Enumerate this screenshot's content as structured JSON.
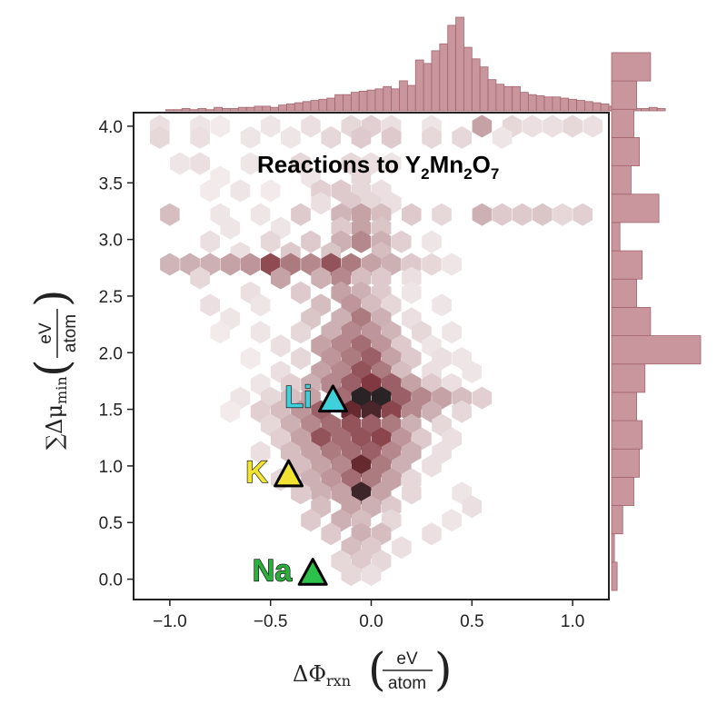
{
  "chart_data": {
    "type": "hexbin",
    "title": "Reactions to Y₂Mn₂O₇",
    "title_parts": {
      "a": "Reactions to Y",
      "s1": "2",
      "b": "Mn",
      "s2": "2",
      "c": "O",
      "s3": "7"
    },
    "xlabel": {
      "sym": "ΔΦ",
      "sub": "rxn",
      "num": "eV",
      "den": "atom"
    },
    "ylabel": {
      "sym": "∑Δμ",
      "sub": "min",
      "num": "eV",
      "den": "atom"
    },
    "xlim": [
      -1.18,
      1.18
    ],
    "ylim": [
      -0.18,
      4.12
    ],
    "xticks": [
      -1.0,
      -0.5,
      0.0,
      0.5,
      1.0
    ],
    "xtick_labels": [
      "−1.0",
      "−0.5",
      "0.0",
      "0.5",
      "1.0"
    ],
    "yticks": [
      0.0,
      0.5,
      1.0,
      1.5,
      2.0,
      2.5,
      3.0,
      3.5,
      4.0
    ],
    "ytick_labels": [
      "0.0",
      "0.5",
      "1.0",
      "1.5",
      "2.0",
      "2.5",
      "3.0",
      "3.5",
      "4.0"
    ],
    "colors": {
      "base": "#7a2b34",
      "dark": "#2a2325",
      "bar": "#c9969d",
      "bar_edge": "#a4646d"
    },
    "hexbins": [
      [
        -1.05,
        4.0,
        0.12
      ],
      [
        -0.85,
        4.0,
        0.1
      ],
      [
        -0.75,
        4.0,
        0.08
      ],
      [
        -0.5,
        4.0,
        0.1
      ],
      [
        -0.3,
        4.0,
        0.12
      ],
      [
        -0.1,
        4.0,
        0.15
      ],
      [
        0.0,
        4.0,
        0.18
      ],
      [
        0.1,
        4.0,
        0.12
      ],
      [
        0.3,
        4.0,
        0.1
      ],
      [
        0.55,
        4.0,
        0.35
      ],
      [
        0.7,
        4.0,
        0.15
      ],
      [
        0.8,
        4.0,
        0.12
      ],
      [
        0.9,
        4.0,
        0.12
      ],
      [
        1.0,
        4.0,
        0.15
      ],
      [
        1.1,
        4.0,
        0.12
      ],
      [
        -1.05,
        3.9,
        0.15
      ],
      [
        -0.85,
        3.9,
        0.12
      ],
      [
        -0.6,
        3.9,
        0.1
      ],
      [
        -0.4,
        3.9,
        0.1
      ],
      [
        -0.2,
        3.9,
        0.15
      ],
      [
        -0.05,
        3.9,
        0.2
      ],
      [
        0.1,
        3.9,
        0.2
      ],
      [
        0.3,
        3.9,
        0.15
      ],
      [
        0.45,
        3.9,
        0.15
      ],
      [
        0.65,
        3.9,
        0.1
      ],
      [
        -0.95,
        3.67,
        0.1
      ],
      [
        -0.85,
        3.67,
        0.12
      ],
      [
        -0.6,
        3.67,
        0.1
      ],
      [
        -0.35,
        3.67,
        0.15
      ],
      [
        -0.1,
        3.67,
        0.15
      ],
      [
        0.0,
        3.67,
        0.12
      ],
      [
        0.1,
        3.67,
        0.1
      ],
      [
        -0.75,
        3.55,
        0.08
      ],
      [
        -0.3,
        3.55,
        0.1
      ],
      [
        -0.05,
        3.55,
        0.15
      ],
      [
        -0.8,
        3.43,
        0.08
      ],
      [
        -0.65,
        3.43,
        0.1
      ],
      [
        -0.5,
        3.43,
        0.08
      ],
      [
        -0.25,
        3.43,
        0.18
      ],
      [
        -0.15,
        3.43,
        0.2
      ],
      [
        -0.05,
        3.43,
        0.15
      ],
      [
        0.05,
        3.43,
        0.12
      ],
      [
        -0.25,
        3.32,
        0.12
      ],
      [
        -0.1,
        3.32,
        0.2
      ],
      [
        0.0,
        3.32,
        0.15
      ],
      [
        0.1,
        3.32,
        0.12
      ],
      [
        -1.0,
        3.22,
        0.25
      ],
      [
        -0.75,
        3.22,
        0.1
      ],
      [
        -0.55,
        3.22,
        0.1
      ],
      [
        -0.35,
        3.22,
        0.2
      ],
      [
        -0.15,
        3.22,
        0.28
      ],
      [
        -0.05,
        3.22,
        0.35
      ],
      [
        0.05,
        3.22,
        0.25
      ],
      [
        0.2,
        3.22,
        0.2
      ],
      [
        0.35,
        3.22,
        0.15
      ],
      [
        0.55,
        3.22,
        0.3
      ],
      [
        0.65,
        3.22,
        0.2
      ],
      [
        0.75,
        3.22,
        0.2
      ],
      [
        0.85,
        3.22,
        0.22
      ],
      [
        0.95,
        3.22,
        0.15
      ],
      [
        1.05,
        3.22,
        0.18
      ],
      [
        -0.7,
        3.1,
        0.1
      ],
      [
        -0.45,
        3.1,
        0.1
      ],
      [
        -0.15,
        3.1,
        0.2
      ],
      [
        -0.05,
        3.1,
        0.35
      ],
      [
        0.05,
        3.1,
        0.22
      ],
      [
        -0.8,
        2.98,
        0.12
      ],
      [
        -0.5,
        2.98,
        0.15
      ],
      [
        -0.3,
        2.98,
        0.2
      ],
      [
        -0.15,
        2.98,
        0.3
      ],
      [
        -0.05,
        2.98,
        0.45
      ],
      [
        0.05,
        2.98,
        0.3
      ],
      [
        0.15,
        2.98,
        0.18
      ],
      [
        0.3,
        2.98,
        0.1
      ],
      [
        -0.65,
        2.88,
        0.12
      ],
      [
        -0.4,
        2.88,
        0.2
      ],
      [
        -0.2,
        2.88,
        0.22
      ],
      [
        0.05,
        2.88,
        0.25
      ],
      [
        -1.0,
        2.78,
        0.28
      ],
      [
        -0.9,
        2.78,
        0.3
      ],
      [
        -0.8,
        2.78,
        0.3
      ],
      [
        -0.7,
        2.78,
        0.35
      ],
      [
        -0.6,
        2.78,
        0.4
      ],
      [
        -0.5,
        2.78,
        0.68
      ],
      [
        -0.4,
        2.78,
        0.5
      ],
      [
        -0.3,
        2.78,
        0.45
      ],
      [
        -0.2,
        2.78,
        0.65
      ],
      [
        -0.1,
        2.78,
        0.5
      ],
      [
        0.0,
        2.78,
        0.35
      ],
      [
        0.1,
        2.78,
        0.3
      ],
      [
        0.2,
        2.78,
        0.2
      ],
      [
        0.3,
        2.78,
        0.15
      ],
      [
        0.4,
        2.78,
        0.1
      ],
      [
        -0.85,
        2.66,
        0.15
      ],
      [
        -0.45,
        2.66,
        0.35
      ],
      [
        -0.25,
        2.66,
        0.3
      ],
      [
        -0.15,
        2.66,
        0.45
      ],
      [
        -0.05,
        2.66,
        0.25
      ],
      [
        0.05,
        2.66,
        0.2
      ],
      [
        0.2,
        2.66,
        0.12
      ],
      [
        -0.6,
        2.53,
        0.12
      ],
      [
        -0.35,
        2.53,
        0.2
      ],
      [
        -0.15,
        2.53,
        0.35
      ],
      [
        -0.05,
        2.53,
        0.3
      ],
      [
        0.05,
        2.53,
        0.2
      ],
      [
        0.2,
        2.53,
        0.1
      ],
      [
        -0.8,
        2.42,
        0.12
      ],
      [
        -0.55,
        2.42,
        0.1
      ],
      [
        -0.25,
        2.42,
        0.25
      ],
      [
        -0.1,
        2.42,
        0.4
      ],
      [
        0.0,
        2.42,
        0.25
      ],
      [
        0.1,
        2.42,
        0.15
      ],
      [
        0.35,
        2.42,
        0.1
      ],
      [
        -0.7,
        2.3,
        0.1
      ],
      [
        -0.3,
        2.3,
        0.22
      ],
      [
        -0.15,
        2.3,
        0.3
      ],
      [
        -0.05,
        2.3,
        0.5
      ],
      [
        0.05,
        2.3,
        0.3
      ],
      [
        0.2,
        2.3,
        0.12
      ],
      [
        -0.75,
        2.18,
        0.08
      ],
      [
        -0.55,
        2.18,
        0.1
      ],
      [
        -0.35,
        2.18,
        0.15
      ],
      [
        -0.2,
        2.18,
        0.3
      ],
      [
        -0.1,
        2.18,
        0.45
      ],
      [
        0.0,
        2.18,
        0.4
      ],
      [
        0.1,
        2.18,
        0.28
      ],
      [
        0.25,
        2.18,
        0.15
      ],
      [
        0.4,
        2.18,
        0.1
      ],
      [
        -0.45,
        2.06,
        0.12
      ],
      [
        -0.25,
        2.06,
        0.35
      ],
      [
        -0.15,
        2.06,
        0.45
      ],
      [
        -0.05,
        2.06,
        0.55
      ],
      [
        0.05,
        2.06,
        0.4
      ],
      [
        0.15,
        2.06,
        0.2
      ],
      [
        0.3,
        2.06,
        0.1
      ],
      [
        -0.6,
        1.95,
        0.08
      ],
      [
        -0.35,
        1.95,
        0.15
      ],
      [
        -0.2,
        1.95,
        0.4
      ],
      [
        -0.1,
        1.95,
        0.5
      ],
      [
        0.0,
        1.95,
        0.6
      ],
      [
        0.1,
        1.95,
        0.35
      ],
      [
        0.2,
        1.95,
        0.2
      ],
      [
        0.35,
        1.95,
        0.12
      ],
      [
        0.45,
        1.95,
        0.1
      ],
      [
        -0.45,
        1.83,
        0.12
      ],
      [
        -0.25,
        1.83,
        0.35
      ],
      [
        -0.15,
        1.83,
        0.45
      ],
      [
        -0.05,
        1.83,
        0.65
      ],
      [
        0.05,
        1.83,
        0.5
      ],
      [
        0.15,
        1.83,
        0.25
      ],
      [
        0.3,
        1.83,
        0.12
      ],
      [
        0.5,
        1.83,
        0.1
      ],
      [
        -0.55,
        1.72,
        0.1
      ],
      [
        -0.4,
        1.72,
        0.18
      ],
      [
        -0.3,
        1.72,
        0.3
      ],
      [
        -0.2,
        1.72,
        0.45
      ],
      [
        -0.1,
        1.72,
        0.6
      ],
      [
        0.0,
        1.72,
        0.75
      ],
      [
        0.1,
        1.72,
        0.6
      ],
      [
        0.2,
        1.72,
        0.35
      ],
      [
        0.3,
        1.72,
        0.2
      ],
      [
        0.4,
        1.72,
        0.12
      ],
      [
        -0.65,
        1.6,
        0.1
      ],
      [
        -0.5,
        1.6,
        0.15
      ],
      [
        -0.4,
        1.6,
        0.25
      ],
      [
        -0.3,
        1.6,
        0.35
      ],
      [
        -0.15,
        1.6,
        0.55
      ],
      [
        -0.05,
        1.6,
        1.0
      ],
      [
        0.05,
        1.6,
        1.0
      ],
      [
        0.15,
        1.6,
        0.6
      ],
      [
        0.25,
        1.6,
        0.45
      ],
      [
        0.35,
        1.6,
        0.35
      ],
      [
        0.45,
        1.6,
        0.25
      ],
      [
        0.55,
        1.6,
        0.18
      ],
      [
        -0.7,
        1.48,
        0.08
      ],
      [
        -0.55,
        1.48,
        0.18
      ],
      [
        -0.45,
        1.48,
        0.25
      ],
      [
        -0.35,
        1.48,
        0.4
      ],
      [
        -0.25,
        1.48,
        0.6
      ],
      [
        -0.1,
        1.48,
        0.85
      ],
      [
        0.0,
        1.48,
        0.92
      ],
      [
        0.1,
        1.48,
        0.7
      ],
      [
        0.2,
        1.48,
        0.45
      ],
      [
        0.3,
        1.48,
        0.3
      ],
      [
        0.45,
        1.48,
        0.15
      ],
      [
        -0.5,
        1.36,
        0.15
      ],
      [
        -0.4,
        1.36,
        0.3
      ],
      [
        -0.3,
        1.36,
        0.45
      ],
      [
        -0.2,
        1.36,
        0.55
      ],
      [
        -0.1,
        1.36,
        0.65
      ],
      [
        0.0,
        1.36,
        0.6
      ],
      [
        0.1,
        1.36,
        0.5
      ],
      [
        0.2,
        1.36,
        0.3
      ],
      [
        0.35,
        1.36,
        0.15
      ],
      [
        -0.45,
        1.24,
        0.18
      ],
      [
        -0.35,
        1.24,
        0.35
      ],
      [
        -0.25,
        1.24,
        0.65
      ],
      [
        -0.15,
        1.24,
        0.55
      ],
      [
        -0.05,
        1.24,
        0.65
      ],
      [
        0.05,
        1.24,
        0.7
      ],
      [
        0.15,
        1.24,
        0.4
      ],
      [
        0.25,
        1.24,
        0.2
      ],
      [
        0.4,
        1.24,
        0.12
      ],
      [
        -0.55,
        1.12,
        0.12
      ],
      [
        -0.4,
        1.12,
        0.25
      ],
      [
        -0.3,
        1.12,
        0.35
      ],
      [
        -0.2,
        1.12,
        0.5
      ],
      [
        -0.1,
        1.12,
        0.55
      ],
      [
        0.0,
        1.12,
        0.6
      ],
      [
        0.1,
        1.12,
        0.45
      ],
      [
        0.2,
        1.12,
        0.3
      ],
      [
        0.35,
        1.12,
        0.12
      ],
      [
        -0.35,
        1.0,
        0.25
      ],
      [
        -0.25,
        1.0,
        0.35
      ],
      [
        -0.15,
        1.0,
        0.45
      ],
      [
        -0.05,
        1.0,
        0.85
      ],
      [
        0.05,
        1.0,
        0.5
      ],
      [
        0.15,
        1.0,
        0.3
      ],
      [
        0.3,
        1.0,
        0.12
      ],
      [
        -0.45,
        0.88,
        0.15
      ],
      [
        -0.3,
        0.88,
        0.3
      ],
      [
        -0.2,
        0.88,
        0.4
      ],
      [
        -0.1,
        0.88,
        0.55
      ],
      [
        0.0,
        0.88,
        0.5
      ],
      [
        0.1,
        0.88,
        0.35
      ],
      [
        0.2,
        0.88,
        0.15
      ],
      [
        -0.35,
        0.76,
        0.2
      ],
      [
        -0.25,
        0.76,
        0.3
      ],
      [
        -0.15,
        0.76,
        0.35
      ],
      [
        -0.05,
        0.76,
        0.95
      ],
      [
        0.05,
        0.76,
        0.35
      ],
      [
        0.2,
        0.76,
        0.15
      ],
      [
        0.45,
        0.76,
        0.1
      ],
      [
        -0.25,
        0.64,
        0.25
      ],
      [
        -0.1,
        0.64,
        0.35
      ],
      [
        0.0,
        0.64,
        0.3
      ],
      [
        0.1,
        0.64,
        0.2
      ],
      [
        0.5,
        0.64,
        0.12
      ],
      [
        -0.3,
        0.52,
        0.2
      ],
      [
        -0.15,
        0.52,
        0.3
      ],
      [
        -0.05,
        0.52,
        0.25
      ],
      [
        0.1,
        0.52,
        0.15
      ],
      [
        0.4,
        0.52,
        0.1
      ],
      [
        -0.2,
        0.4,
        0.2
      ],
      [
        -0.05,
        0.4,
        0.3
      ],
      [
        0.05,
        0.4,
        0.25
      ],
      [
        0.3,
        0.4,
        0.12
      ],
      [
        -0.1,
        0.28,
        0.25
      ],
      [
        0.0,
        0.28,
        0.2
      ],
      [
        0.15,
        0.28,
        0.12
      ],
      [
        -0.15,
        0.16,
        0.15
      ],
      [
        -0.05,
        0.16,
        0.2
      ],
      [
        0.05,
        0.16,
        0.15
      ],
      [
        -0.1,
        0.04,
        0.15
      ],
      [
        0.0,
        0.04,
        0.12
      ]
    ],
    "markers": [
      {
        "label": "Li",
        "x": -0.19,
        "y": 1.58,
        "fill": "#3fd0dc",
        "label_color": "#3fd0dc"
      },
      {
        "label": "K",
        "x": -0.41,
        "y": 0.92,
        "fill": "#f2e232",
        "label_color": "#f2e232"
      },
      {
        "label": "Na",
        "x": -0.29,
        "y": 0.05,
        "fill": "#2cc14a",
        "label_color": "#2cad3e"
      }
    ],
    "top_histogram": {
      "bin_start": -1.02,
      "bin_width": 0.04,
      "counts": [
        1,
        1,
        2,
        1,
        2,
        1,
        3,
        2,
        2,
        3,
        3,
        4,
        4,
        3,
        5,
        6,
        7,
        8,
        9,
        10,
        11,
        14,
        14,
        16,
        17,
        18,
        19,
        21,
        19,
        26,
        22,
        44,
        41,
        52,
        58,
        74,
        81,
        55,
        45,
        38,
        27,
        23,
        21,
        21,
        16,
        14,
        13,
        12,
        12,
        11,
        10,
        9,
        8,
        7,
        6,
        4,
        3,
        3,
        2,
        2,
        3,
        2
      ]
    },
    "right_histogram": {
      "bin_start": -0.1,
      "bin_width": 0.25,
      "counts": [
        2,
        1,
        4,
        8,
        10,
        11,
        9,
        12,
        32,
        14,
        9,
        11,
        3,
        17,
        7,
        10,
        8,
        9,
        14
      ]
    }
  }
}
